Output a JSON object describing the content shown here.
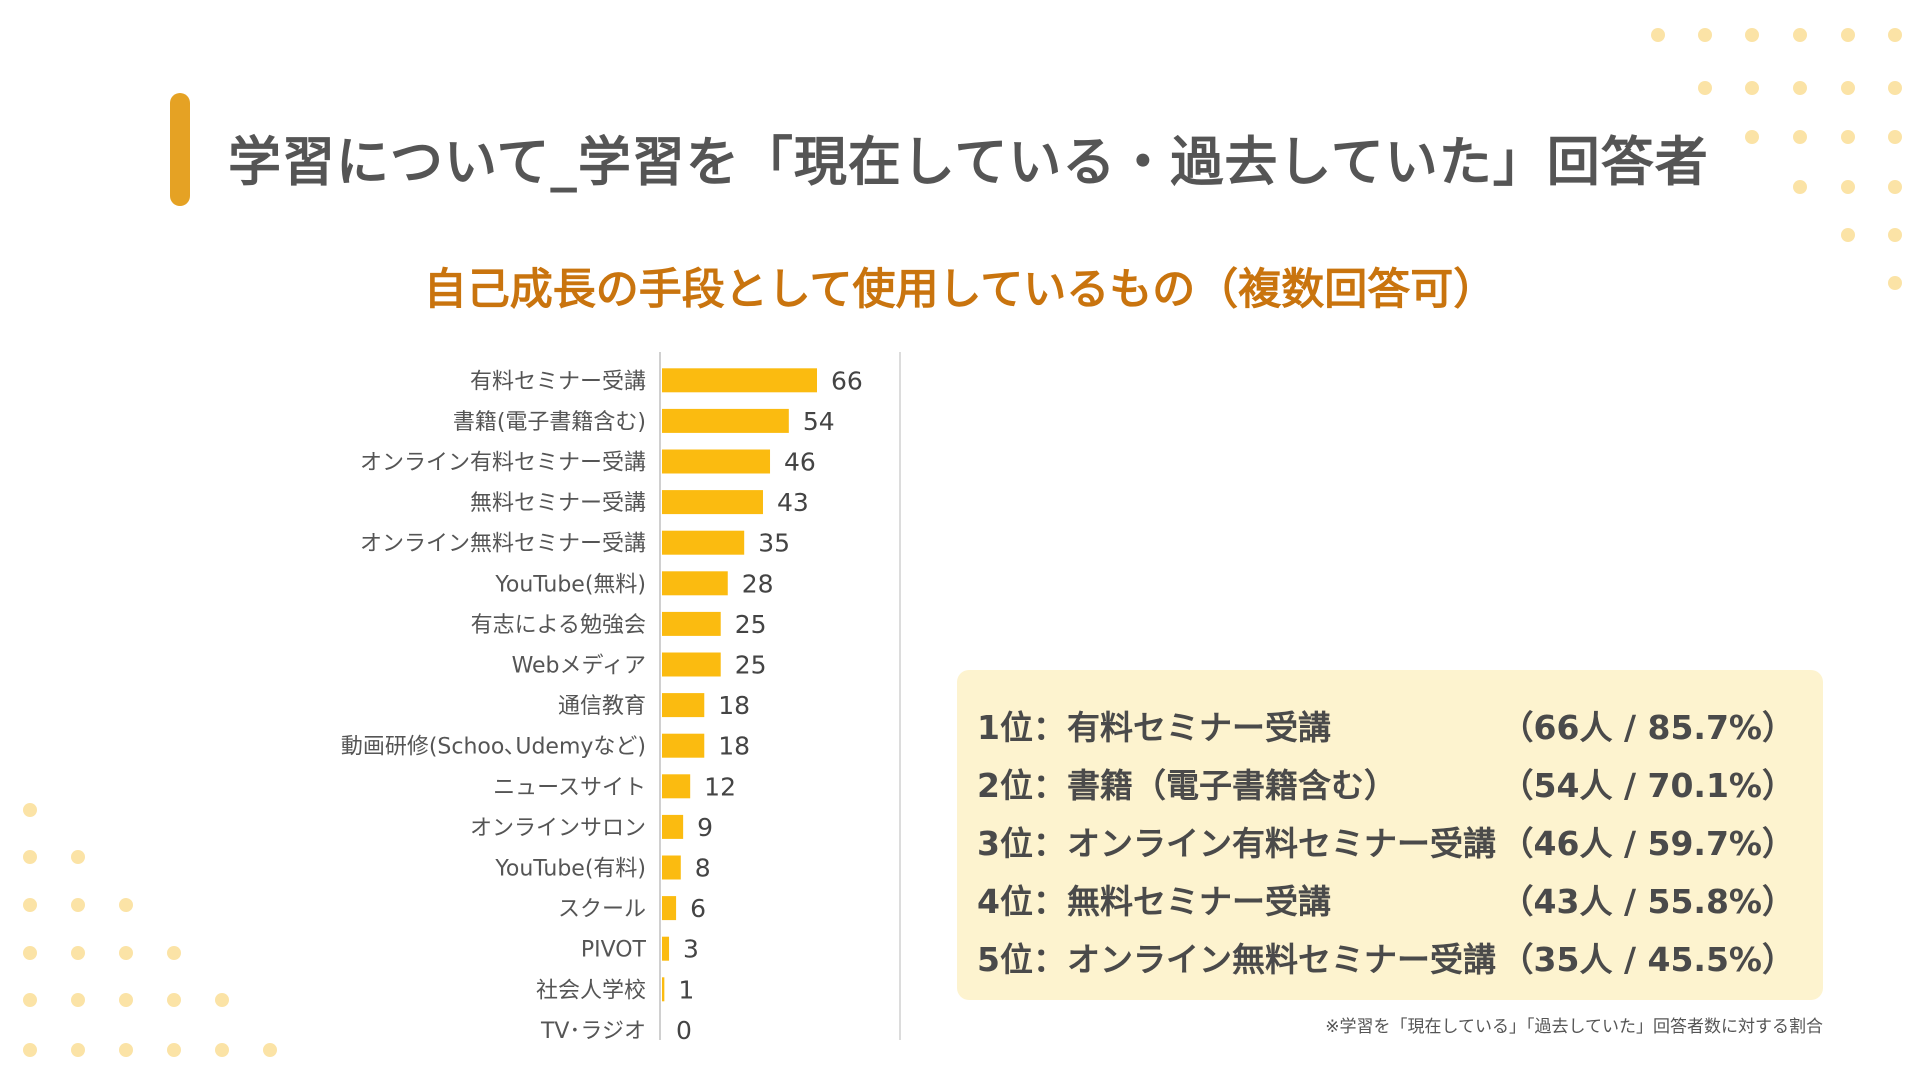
{
  "header": {
    "title": "学習について_学習を「現在している・過去していた」回答者",
    "accent_color": "#e5a224"
  },
  "chart_data": {
    "type": "bar",
    "orientation": "horizontal",
    "title": "自己成長の手段として使用しているもの（複数回答可）",
    "categories": [
      "有料セミナー受講",
      "書籍(電子書籍含む)",
      "オンライン有料セミナー受講",
      "無料セミナー受講",
      "オンライン無料セミナー受講",
      "YouTube(無料)",
      "有志による勉強会",
      "Webメディア",
      "通信教育",
      "動画研修(Schoo､Udemyなど)",
      "ニュースサイト",
      "オンラインサロン",
      "YouTube(有料)",
      "スクール",
      "PIVOT",
      "社会人学校",
      "TV･ラジオ"
    ],
    "values": [
      66,
      54,
      46,
      43,
      35,
      28,
      25,
      25,
      18,
      18,
      12,
      9,
      8,
      6,
      3,
      1,
      0
    ],
    "xlim": [
      0,
      100
    ],
    "bar_color": "#fbbb10",
    "grid": false
  },
  "ranking": {
    "rows": [
      {
        "rank": "1位：",
        "item": "有料セミナー受講",
        "stat": "（66人 / 85.7%）"
      },
      {
        "rank": "2位：",
        "item": "書籍（電子書籍含む）",
        "stat": "（54人 / 70.1%）"
      },
      {
        "rank": "3位：",
        "item": "オンライン有料セミナー受講",
        "stat": "（46人 / 59.7%）"
      },
      {
        "rank": "4位：",
        "item": "無料セミナー受講",
        "stat": "（43人 / 55.8%）"
      },
      {
        "rank": "5位：",
        "item": "オンライン無料セミナー受講",
        "stat": "（35人 / 45.5%）"
      }
    ],
    "background_color": "#fdf3cf"
  },
  "footnote": "※学習を「現在している」「過去していた」回答者数に対する割合",
  "decoration_color": "#fbe3a6"
}
